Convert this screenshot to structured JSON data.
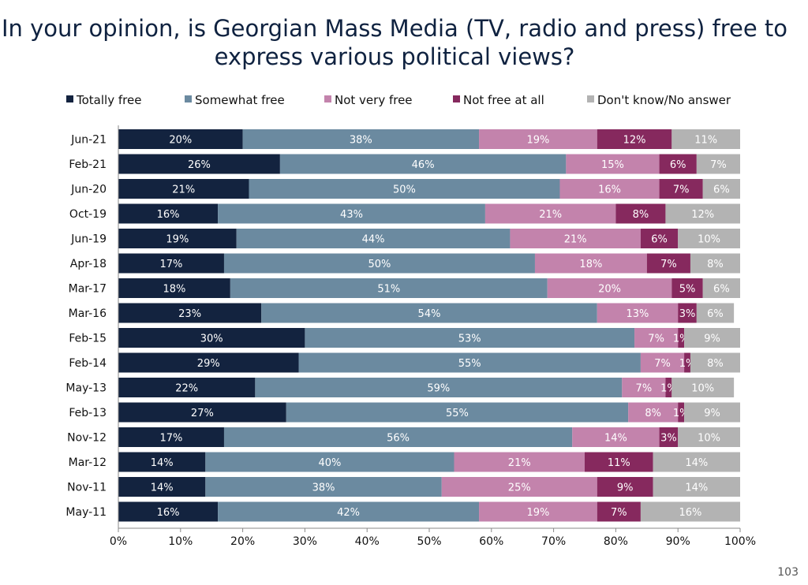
{
  "title_line1": "In your opinion, is Georgian Mass Media (TV, radio and press) free to",
  "title_line2": "express various political views?",
  "page_number": "103",
  "chart_data": {
    "type": "bar",
    "orientation": "horizontal",
    "stacked": true,
    "title": "In your opinion, is Georgian Mass Media (TV, radio and press) free to express various political views?",
    "categories": [
      "Jun-21",
      "Feb-21",
      "Jun-20",
      "Oct-19",
      "Jun-19",
      "Apr-18",
      "Mar-17",
      "Mar-16",
      "Feb-15",
      "Feb-14",
      "May-13",
      "Feb-13",
      "Nov-12",
      "Mar-12",
      "Nov-11",
      "May-11"
    ],
    "xlim": [
      0,
      100
    ],
    "xticks": [
      "0%",
      "10%",
      "20%",
      "30%",
      "40%",
      "50%",
      "60%",
      "70%",
      "80%",
      "90%",
      "100%"
    ],
    "legend_position": "top",
    "grid": false,
    "series": [
      {
        "name": "Totally free",
        "color": "#13233f",
        "label_color": "#ffffff",
        "values": [
          20,
          26,
          21,
          16,
          19,
          17,
          18,
          23,
          30,
          29,
          22,
          27,
          17,
          14,
          14,
          16
        ]
      },
      {
        "name": "Somewhat free",
        "color": "#6b8aa0",
        "label_color": "#ffffff",
        "values": [
          38,
          46,
          50,
          43,
          44,
          50,
          51,
          54,
          53,
          55,
          59,
          55,
          56,
          40,
          38,
          42
        ]
      },
      {
        "name": "Not very free",
        "color": "#c383ac",
        "label_color": "#ffffff",
        "values": [
          19,
          15,
          16,
          21,
          21,
          18,
          20,
          13,
          7,
          7,
          7,
          8,
          14,
          21,
          25,
          19
        ]
      },
      {
        "name": "Not free at all",
        "color": "#86295e",
        "label_color": "#ffffff",
        "values": [
          12,
          6,
          7,
          8,
          6,
          7,
          5,
          3,
          1,
          1,
          1,
          1,
          3,
          11,
          9,
          7
        ]
      },
      {
        "name": "Don't know/No answer",
        "color": "#b3b3b3",
        "label_color": "#ffffff",
        "values": [
          11,
          7,
          6,
          12,
          10,
          8,
          6,
          6,
          9,
          8,
          10,
          9,
          10,
          14,
          14,
          16
        ]
      }
    ]
  }
}
